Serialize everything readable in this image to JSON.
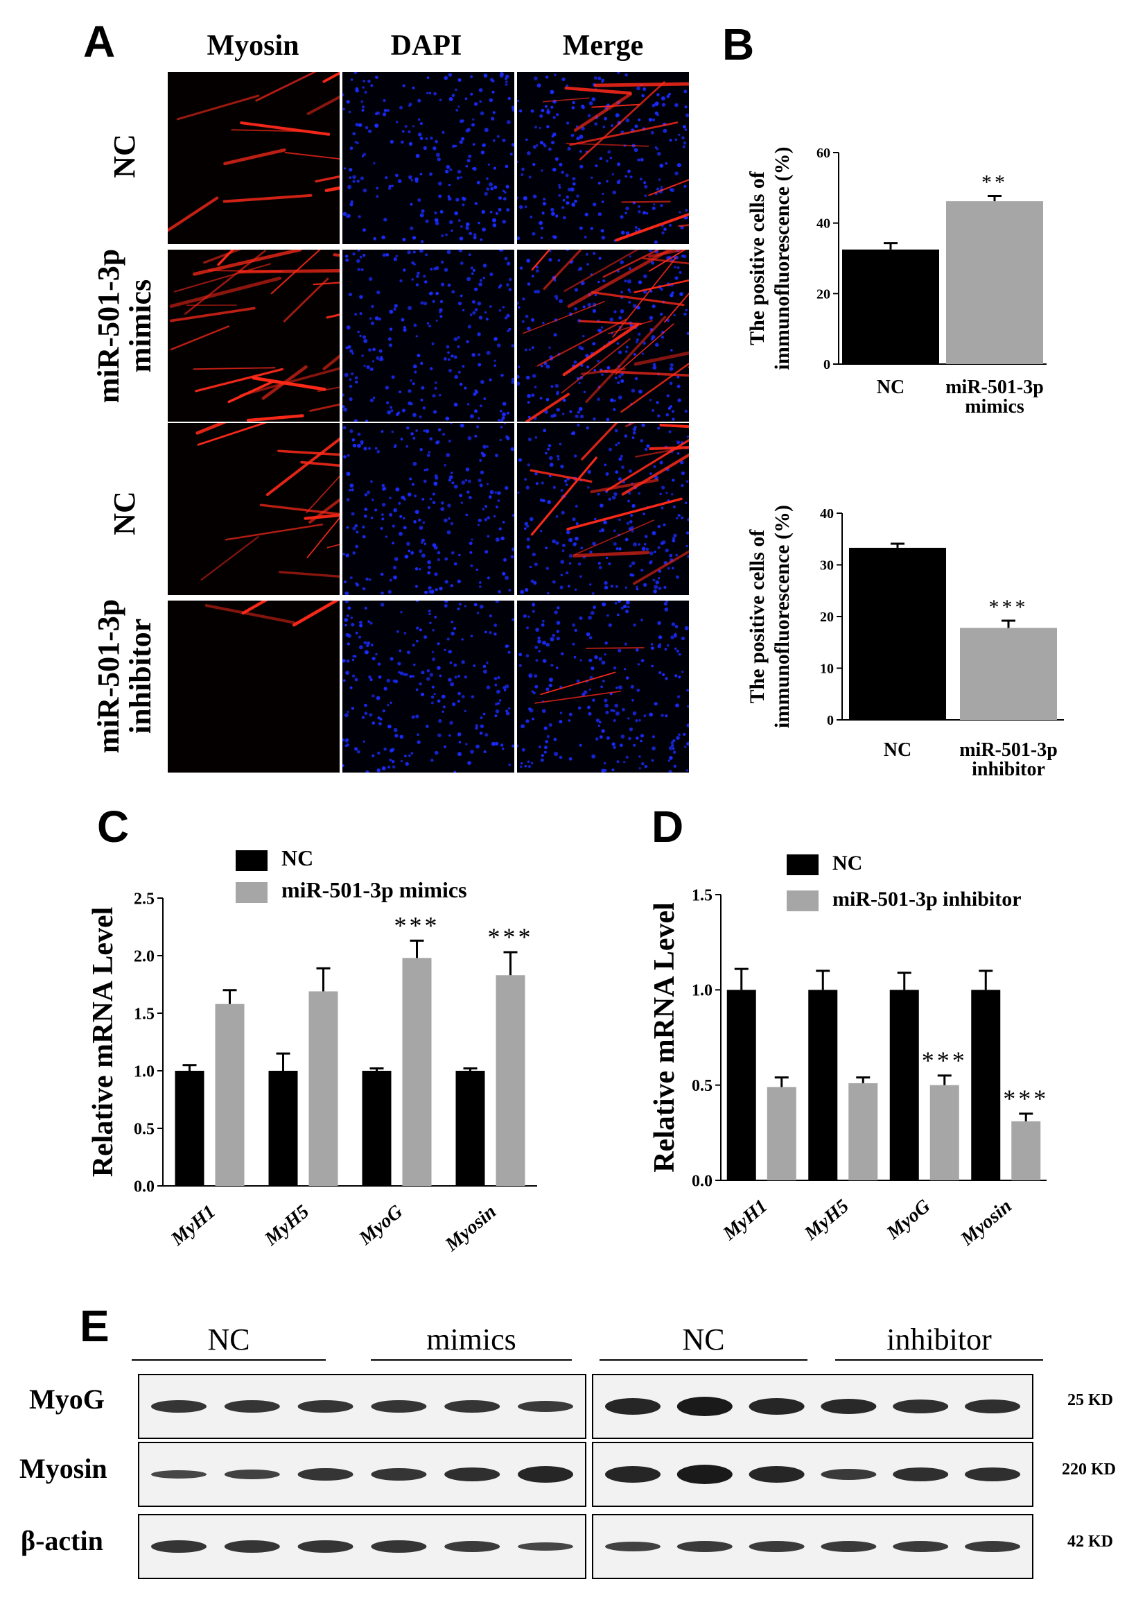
{
  "panel_a": {
    "letter": "A",
    "columns": [
      "Myosin",
      "DAPI",
      "Merge"
    ],
    "rows": [
      {
        "label_lines": [
          "NC"
        ],
        "myosin_intensity": 0.45
      },
      {
        "label_lines": [
          "miR-501-3p",
          "mimics"
        ],
        "myosin_intensity": 1.0
      },
      {
        "label_lines": [
          "NC"
        ],
        "myosin_intensity": 0.55
      },
      {
        "label_lines": [
          "miR-501-3p",
          "inhibitor"
        ],
        "myosin_intensity": 0.12
      }
    ]
  },
  "panel_b": {
    "letter": "B"
  },
  "panel_c": {
    "letter": "C"
  },
  "panel_d": {
    "letter": "D"
  },
  "panel_e": {
    "letter": "E",
    "groups": [
      "NC",
      "mimics",
      "NC",
      "inhibitor"
    ],
    "rows": [
      {
        "label": "MyoG",
        "size": "25 KD"
      },
      {
        "label": "Myosin",
        "size": "220 KD"
      },
      {
        "label": "β-actin",
        "size": "42 KD"
      }
    ]
  },
  "colors": {
    "nc": "#000000",
    "treatment": "#a6a6a6",
    "myosin_stain": "#ff2a1a",
    "dapi": "#1a2cff"
  },
  "chart_data": [
    {
      "id": "B-top",
      "type": "bar",
      "categories": [
        [
          "NC"
        ],
        [
          "miR-501-3p",
          "mimics"
        ]
      ],
      "values": [
        32.5,
        46.2
      ],
      "errors": [
        1.8,
        1.5
      ],
      "significance": [
        "",
        "**"
      ],
      "ylabel_lines": [
        "The positive cells of",
        "immunofluorescence    (%)"
      ],
      "ylim": [
        0,
        60
      ],
      "yticks": [
        "0",
        "20",
        "40",
        "60"
      ]
    },
    {
      "id": "B-bottom",
      "type": "bar",
      "categories": [
        [
          "NC"
        ],
        [
          "miR-501-3p",
          "inhibitor"
        ]
      ],
      "values": [
        33.3,
        17.8
      ],
      "errors": [
        0.8,
        1.4
      ],
      "significance": [
        "",
        "***"
      ],
      "ylabel_lines": [
        "The positive cells of",
        "immunofluorescence (%)"
      ],
      "ylim": [
        0,
        40
      ],
      "yticks": [
        "0",
        "10",
        "20",
        "30",
        "40"
      ]
    },
    {
      "id": "C",
      "type": "bar",
      "categories": [
        "MyH1",
        "MyH5",
        "MyoG",
        "Myosin"
      ],
      "series": [
        {
          "name": "NC",
          "values": [
            1.0,
            1.0,
            1.0,
            1.0
          ],
          "errors": [
            0.05,
            0.15,
            0.02,
            0.02
          ]
        },
        {
          "name": "miR-501-3p mimics",
          "values": [
            1.58,
            1.69,
            1.98,
            1.83
          ],
          "errors": [
            0.12,
            0.2,
            0.15,
            0.2
          ]
        }
      ],
      "significance": [
        "",
        "",
        "***",
        "***"
      ],
      "ylabel": "Relative mRNA Level",
      "ylim": [
        0,
        2.5
      ],
      "yticks": [
        "0.0",
        "0.5",
        "1.0",
        "1.5",
        "2.0",
        "2.5"
      ]
    },
    {
      "id": "D",
      "type": "bar",
      "categories": [
        "MyH1",
        "MyH5",
        "MyoG",
        "Myosin"
      ],
      "series": [
        {
          "name": "NC",
          "values": [
            1.0,
            1.0,
            1.0,
            1.0
          ],
          "errors": [
            0.11,
            0.1,
            0.09,
            0.1
          ]
        },
        {
          "name": "miR-501-3p inhibitor",
          "values": [
            0.49,
            0.51,
            0.5,
            0.31
          ],
          "errors": [
            0.05,
            0.03,
            0.05,
            0.04
          ]
        }
      ],
      "significance": [
        "",
        "",
        "***",
        "***"
      ],
      "ylabel": "Relative mRNA Level",
      "ylim": [
        0,
        1.5
      ],
      "yticks": [
        "0.0",
        "0.5",
        "1.0",
        "1.5"
      ]
    }
  ]
}
